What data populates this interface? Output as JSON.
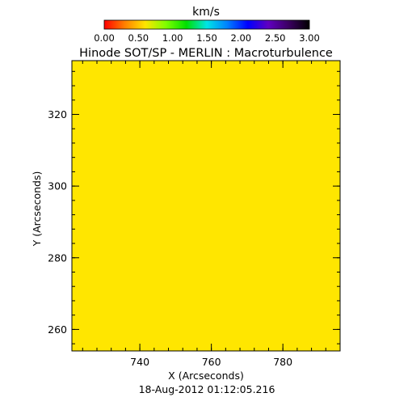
{
  "chart_data": {
    "type": "heatmap",
    "title": "Hinode SOT/SP - MERLIN : Macroturbulence",
    "subtitle": "18-Aug-2012 01:12:05.216",
    "xlabel": "X (Arcseconds)",
    "ylabel": "Y (Arcseconds)",
    "xlim": [
      721,
      796
    ],
    "ylim": [
      254,
      335
    ],
    "xticks": [
      740,
      760,
      780
    ],
    "yticks": [
      260,
      280,
      300,
      320
    ],
    "x_minor_step": 4,
    "y_minor_step": 4,
    "colorbar": {
      "label": "km/s",
      "range": [
        0,
        3
      ],
      "ticks": [
        "0.00",
        "0.50",
        "1.00",
        "1.50",
        "2.00",
        "2.50",
        "3.00"
      ],
      "colormap": [
        "#ff0000",
        "#ff8000",
        "#ffe500",
        "#80ff00",
        "#00e000",
        "#00e5e5",
        "#0080ff",
        "#0000ff",
        "#6000c0",
        "#3a0060",
        "#000000"
      ]
    },
    "field_value": 0.5,
    "field_color": "#ffe600"
  }
}
